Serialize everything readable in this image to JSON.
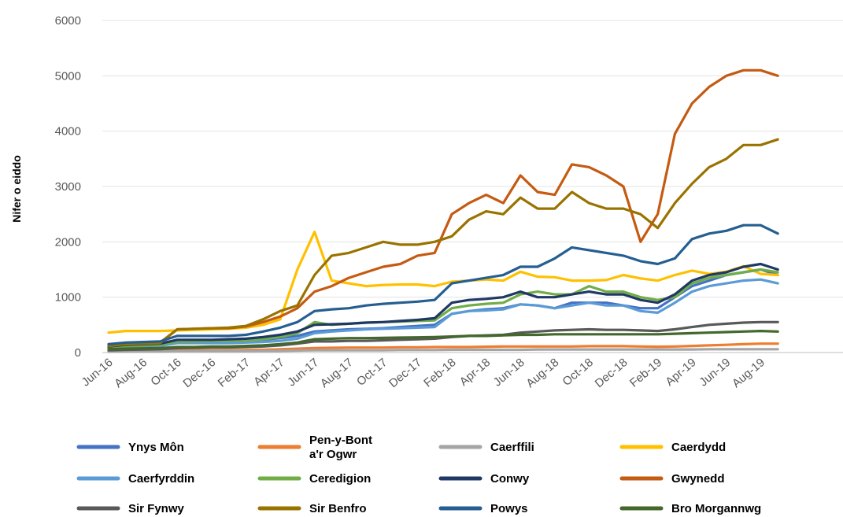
{
  "chart_data": {
    "type": "line",
    "title": "",
    "ylabel": "Nifer o eiddo",
    "xlabel": "",
    "ylim": [
      0,
      6000
    ],
    "yticks": [
      0,
      1000,
      2000,
      3000,
      4000,
      5000,
      6000
    ],
    "grid": true,
    "legend_position": "bottom",
    "x": [
      "Jun-16",
      "Jul-16",
      "Aug-16",
      "Sep-16",
      "Oct-16",
      "Nov-16",
      "Dec-16",
      "Jan-17",
      "Feb-17",
      "Mar-17",
      "Apr-17",
      "May-17",
      "Jun-17",
      "Jul-17",
      "Aug-17",
      "Sep-17",
      "Oct-17",
      "Nov-17",
      "Dec-17",
      "Jan-18",
      "Feb-18",
      "Mar-18",
      "Apr-18",
      "May-18",
      "Jun-18",
      "Jul-18",
      "Aug-18",
      "Sep-18",
      "Oct-18",
      "Nov-18",
      "Dec-18",
      "Jan-19",
      "Feb-19",
      "Mar-19",
      "Apr-19",
      "May-19",
      "Jun-19",
      "Jul-19",
      "Aug-19",
      "Sep-19"
    ],
    "x_tick_labels": [
      "Jun-16",
      "Aug-16",
      "Oct-16",
      "Dec-16",
      "Feb-17",
      "Apr-17",
      "Jun-17",
      "Aug-17",
      "Oct-17",
      "Dec-17",
      "Feb-18",
      "Apr-18",
      "Jun-18",
      "Aug-18",
      "Oct-18",
      "Dec-18",
      "Feb-19",
      "Apr-19",
      "Jun-19",
      "Aug-19"
    ],
    "series": [
      {
        "name": "Ynys Môn",
        "color": "#4472c4",
        "values": [
          90,
          120,
          130,
          140,
          200,
          190,
          200,
          200,
          220,
          230,
          260,
          300,
          380,
          400,
          420,
          430,
          440,
          460,
          480,
          500,
          700,
          750,
          780,
          800,
          870,
          850,
          800,
          900,
          900,
          900,
          850,
          800,
          800,
          1000,
          1200,
          1300,
          1400,
          1450,
          1500,
          1400
        ]
      },
      {
        "name": "Pen-y-Bont\na'r Ogwr",
        "color": "#ed7d31",
        "values": [
          20,
          25,
          25,
          30,
          40,
          40,
          40,
          40,
          45,
          50,
          60,
          70,
          80,
          85,
          90,
          90,
          90,
          95,
          95,
          100,
          100,
          100,
          105,
          110,
          110,
          110,
          110,
          110,
          115,
          115,
          115,
          110,
          105,
          110,
          120,
          130,
          140,
          150,
          160,
          160
        ]
      },
      {
        "name": "Caerffili",
        "color": "#a5a5a5",
        "values": [
          15,
          15,
          20,
          20,
          25,
          25,
          25,
          25,
          25,
          30,
          30,
          35,
          40,
          40,
          40,
          40,
          40,
          45,
          45,
          45,
          50,
          50,
          50,
          50,
          50,
          55,
          55,
          55,
          55,
          55,
          55,
          55,
          55,
          55,
          55,
          60,
          60,
          60,
          60,
          60
        ]
      },
      {
        "name": "Caerdydd",
        "color": "#ffc000",
        "values": [
          360,
          390,
          390,
          390,
          400,
          410,
          420,
          430,
          450,
          500,
          600,
          1500,
          2180,
          1300,
          1250,
          1200,
          1220,
          1230,
          1230,
          1200,
          1280,
          1300,
          1320,
          1300,
          1460,
          1370,
          1360,
          1300,
          1300,
          1310,
          1400,
          1340,
          1300,
          1400,
          1480,
          1420,
          1460,
          1560,
          1420,
          1400
        ]
      },
      {
        "name": "Caerfyrddin",
        "color": "#5b9bd5",
        "values": [
          80,
          100,
          110,
          120,
          170,
          170,
          170,
          170,
          180,
          190,
          210,
          250,
          350,
          380,
          400,
          420,
          430,
          440,
          450,
          460,
          700,
          750,
          760,
          780,
          870,
          850,
          800,
          850,
          900,
          850,
          850,
          750,
          720,
          900,
          1100,
          1200,
          1250,
          1300,
          1320,
          1250
        ]
      },
      {
        "name": "Ceredigion",
        "color": "#70ad47",
        "values": [
          100,
          120,
          130,
          140,
          200,
          200,
          210,
          210,
          220,
          240,
          280,
          350,
          550,
          500,
          520,
          540,
          550,
          560,
          570,
          580,
          800,
          850,
          880,
          900,
          1050,
          1100,
          1050,
          1050,
          1200,
          1100,
          1100,
          1000,
          950,
          1000,
          1250,
          1350,
          1400,
          1450,
          1500,
          1450
        ]
      },
      {
        "name": "Conwy",
        "color": "#203864",
        "values": [
          110,
          140,
          150,
          160,
          230,
          230,
          230,
          240,
          250,
          280,
          320,
          380,
          500,
          510,
          520,
          540,
          550,
          570,
          590,
          620,
          900,
          950,
          970,
          1000,
          1100,
          1000,
          1000,
          1050,
          1100,
          1050,
          1050,
          950,
          900,
          1050,
          1300,
          1400,
          1450,
          1550,
          1600,
          1500
        ]
      },
      {
        "name": "Gwynedd",
        "color": "#c55a11",
        "values": [
          120,
          160,
          170,
          180,
          420,
          430,
          440,
          440,
          470,
          550,
          650,
          800,
          1100,
          1200,
          1350,
          1450,
          1550,
          1600,
          1750,
          1800,
          2500,
          2700,
          2850,
          2700,
          3200,
          2900,
          2850,
          3400,
          3350,
          3200,
          3000,
          2000,
          2500,
          3950,
          4500,
          4800,
          5000,
          5100,
          5100,
          5000
        ]
      },
      {
        "name": "Sir Fynwy",
        "color": "#595959",
        "values": [
          40,
          50,
          55,
          60,
          80,
          85,
          90,
          90,
          100,
          110,
          130,
          160,
          200,
          200,
          210,
          210,
          220,
          230,
          240,
          250,
          280,
          300,
          310,
          320,
          360,
          380,
          400,
          410,
          420,
          410,
          410,
          400,
          390,
          420,
          460,
          500,
          520,
          540,
          550,
          550
        ]
      },
      {
        "name": "Sir Benfro",
        "color": "#997300",
        "values": [
          120,
          150,
          160,
          170,
          420,
          430,
          440,
          450,
          480,
          600,
          750,
          850,
          1400,
          1750,
          1800,
          1900,
          2000,
          1950,
          1950,
          2000,
          2100,
          2400,
          2550,
          2500,
          2800,
          2600,
          2600,
          2900,
          2700,
          2600,
          2600,
          2500,
          2250,
          2700,
          3050,
          3350,
          3500,
          3750,
          3750,
          3850
        ]
      },
      {
        "name": "Powys",
        "color": "#255e91",
        "values": [
          150,
          180,
          190,
          200,
          300,
          300,
          300,
          300,
          320,
          380,
          450,
          550,
          750,
          780,
          800,
          850,
          880,
          900,
          920,
          950,
          1250,
          1300,
          1350,
          1400,
          1550,
          1550,
          1700,
          1900,
          1850,
          1800,
          1750,
          1650,
          1600,
          1700,
          2050,
          2150,
          2200,
          2300,
          2300,
          2150
        ]
      },
      {
        "name": "Bro Morgannwg",
        "color": "#43682b",
        "values": [
          60,
          70,
          75,
          80,
          100,
          100,
          110,
          110,
          120,
          130,
          150,
          180,
          240,
          250,
          260,
          260,
          265,
          270,
          275,
          280,
          290,
          300,
          300,
          310,
          320,
          320,
          330,
          330,
          330,
          330,
          330,
          330,
          330,
          340,
          350,
          360,
          370,
          380,
          390,
          380
        ]
      }
    ]
  }
}
